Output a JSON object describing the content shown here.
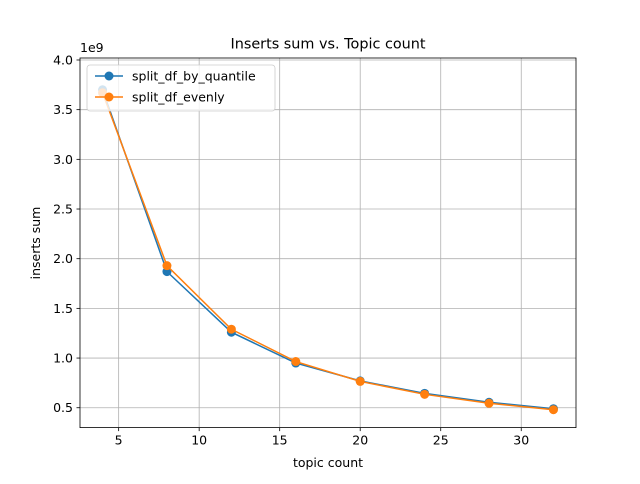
{
  "chart_data": {
    "type": "line",
    "title": "Inserts sum vs. Topic count",
    "xlabel": "topic count",
    "ylabel": "inserts sum",
    "y_offset_label": "1e9",
    "x": [
      4,
      8,
      12,
      16,
      20,
      24,
      28,
      32
    ],
    "xlim": [
      2.6,
      33.4
    ],
    "ylim": [
      0.3,
      4.02
    ],
    "x_ticks": [
      5,
      10,
      15,
      20,
      25,
      30
    ],
    "y_ticks": [
      0.5,
      1.0,
      1.5,
      2.0,
      2.5,
      3.0,
      3.5,
      4.0
    ],
    "x_tick_labels": [
      "5",
      "10",
      "15",
      "20",
      "25",
      "30"
    ],
    "y_tick_labels": [
      "0.5",
      "1.0",
      "1.5",
      "2.0",
      "2.5",
      "3.0",
      "3.5",
      "4.0"
    ],
    "grid": true,
    "legend_position": "top-left",
    "series": [
      {
        "name": "split_df_by_quantile",
        "color": "#1f77b4",
        "values": [
          3.7,
          1.87,
          1.26,
          0.95,
          0.77,
          0.645,
          0.555,
          0.49
        ]
      },
      {
        "name": "split_df_evenly",
        "color": "#ff7f0e",
        "values": [
          3.67,
          1.93,
          1.29,
          0.965,
          0.765,
          0.635,
          0.545,
          0.48
        ]
      }
    ]
  }
}
